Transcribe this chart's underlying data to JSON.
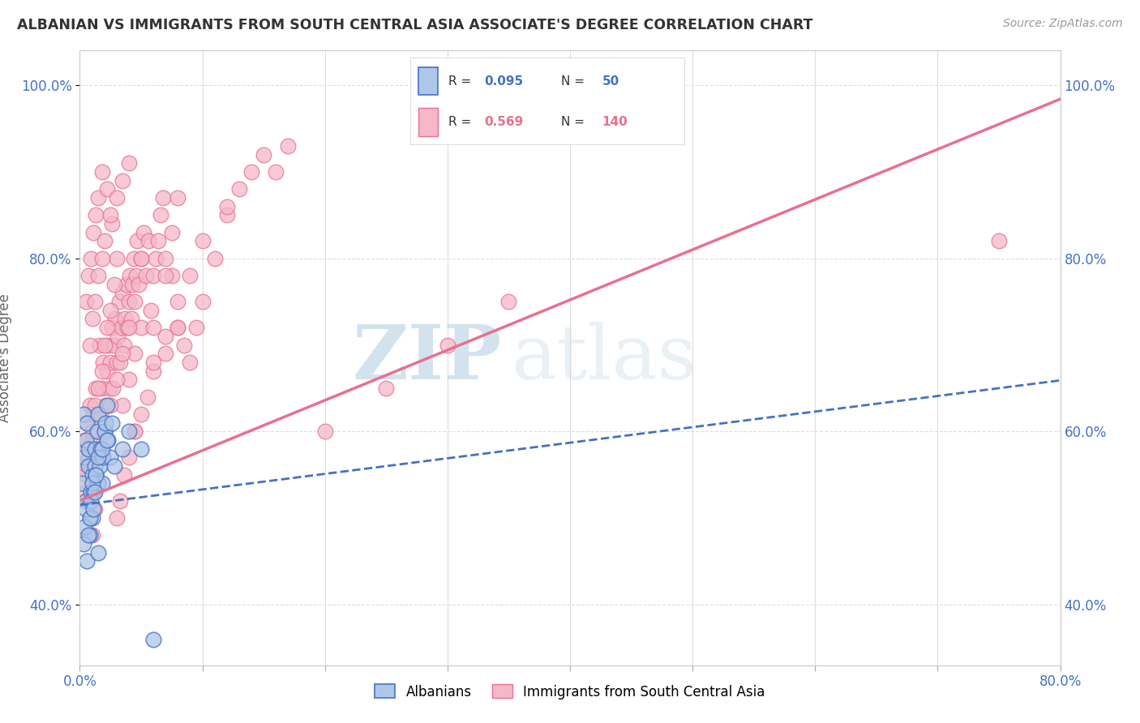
{
  "title": "ALBANIAN VS IMMIGRANTS FROM SOUTH CENTRAL ASIA ASSOCIATE'S DEGREE CORRELATION CHART",
  "source_text": "Source: ZipAtlas.com",
  "ylabel": "Associate's Degree",
  "xlim": [
    0.0,
    0.8
  ],
  "ylim": [
    0.33,
    1.04
  ],
  "yticks": [
    0.4,
    0.6,
    0.8,
    1.0
  ],
  "ytick_labels": [
    "40.0%",
    "60.0%",
    "80.0%",
    "100.0%"
  ],
  "xticks": [
    0.0,
    0.1,
    0.2,
    0.3,
    0.4,
    0.5,
    0.6,
    0.7,
    0.8
  ],
  "series1_color": "#aec6e8",
  "series2_color": "#f4b8c8",
  "line1_color": "#4472c4",
  "line2_color": "#e87090",
  "R1": 0.095,
  "N1": 50,
  "R2": 0.569,
  "N2": 140,
  "legend1_label": "Albanians",
  "legend2_label": "Immigrants from South Central Asia",
  "watermark_zip": "ZIP",
  "watermark_atlas": "atlas",
  "background_color": "#ffffff",
  "grid_color": "#dddddd",
  "line1_slope": 0.18,
  "line1_intercept": 0.515,
  "line2_slope": 0.58,
  "line2_intercept": 0.52,
  "albanians_x": [
    0.002,
    0.003,
    0.004,
    0.005,
    0.005,
    0.006,
    0.007,
    0.007,
    0.008,
    0.008,
    0.009,
    0.01,
    0.01,
    0.011,
    0.012,
    0.012,
    0.013,
    0.014,
    0.015,
    0.015,
    0.016,
    0.017,
    0.018,
    0.019,
    0.02,
    0.021,
    0.022,
    0.023,
    0.025,
    0.026,
    0.003,
    0.004,
    0.005,
    0.006,
    0.007,
    0.008,
    0.009,
    0.01,
    0.011,
    0.012,
    0.013,
    0.015,
    0.018,
    0.022,
    0.028,
    0.035,
    0.04,
    0.05,
    0.06,
    0.015
  ],
  "albanians_y": [
    0.54,
    0.62,
    0.57,
    0.59,
    0.52,
    0.61,
    0.56,
    0.58,
    0.48,
    0.5,
    0.53,
    0.55,
    0.5,
    0.53,
    0.56,
    0.58,
    0.55,
    0.6,
    0.62,
    0.54,
    0.56,
    0.58,
    0.54,
    0.57,
    0.6,
    0.61,
    0.63,
    0.59,
    0.57,
    0.61,
    0.47,
    0.49,
    0.51,
    0.45,
    0.48,
    0.5,
    0.52,
    0.54,
    0.51,
    0.53,
    0.55,
    0.57,
    0.58,
    0.59,
    0.56,
    0.58,
    0.6,
    0.58,
    0.36,
    0.46
  ],
  "immigrants_x": [
    0.002,
    0.004,
    0.005,
    0.006,
    0.007,
    0.008,
    0.009,
    0.01,
    0.011,
    0.012,
    0.013,
    0.014,
    0.015,
    0.016,
    0.017,
    0.018,
    0.019,
    0.02,
    0.021,
    0.022,
    0.023,
    0.024,
    0.025,
    0.026,
    0.027,
    0.028,
    0.029,
    0.03,
    0.031,
    0.032,
    0.033,
    0.034,
    0.035,
    0.036,
    0.037,
    0.038,
    0.039,
    0.04,
    0.041,
    0.042,
    0.043,
    0.044,
    0.045,
    0.046,
    0.047,
    0.048,
    0.05,
    0.052,
    0.054,
    0.056,
    0.058,
    0.06,
    0.062,
    0.064,
    0.066,
    0.068,
    0.07,
    0.075,
    0.08,
    0.085,
    0.09,
    0.095,
    0.1,
    0.11,
    0.12,
    0.13,
    0.14,
    0.15,
    0.16,
    0.17,
    0.005,
    0.008,
    0.01,
    0.012,
    0.015,
    0.018,
    0.02,
    0.022,
    0.025,
    0.028,
    0.03,
    0.033,
    0.036,
    0.04,
    0.045,
    0.05,
    0.055,
    0.06,
    0.07,
    0.08,
    0.005,
    0.007,
    0.009,
    0.011,
    0.013,
    0.015,
    0.018,
    0.022,
    0.026,
    0.03,
    0.035,
    0.04,
    0.045,
    0.05,
    0.06,
    0.07,
    0.08,
    0.09,
    0.1,
    0.12,
    0.01,
    0.012,
    0.015,
    0.018,
    0.02,
    0.025,
    0.03,
    0.035,
    0.04,
    0.045,
    0.008,
    0.01,
    0.012,
    0.015,
    0.018,
    0.02,
    0.025,
    0.03,
    0.035,
    0.04,
    0.2,
    0.25,
    0.3,
    0.35,
    0.05,
    0.06,
    0.07,
    0.075,
    0.08,
    0.75
  ],
  "immigrants_y": [
    0.56,
    0.59,
    0.53,
    0.61,
    0.57,
    0.63,
    0.56,
    0.59,
    0.62,
    0.55,
    0.65,
    0.6,
    0.58,
    0.7,
    0.62,
    0.65,
    0.68,
    0.6,
    0.63,
    0.67,
    0.7,
    0.65,
    0.68,
    0.72,
    0.65,
    0.7,
    0.73,
    0.68,
    0.71,
    0.75,
    0.68,
    0.72,
    0.76,
    0.7,
    0.73,
    0.77,
    0.72,
    0.75,
    0.78,
    0.73,
    0.77,
    0.8,
    0.75,
    0.78,
    0.82,
    0.77,
    0.8,
    0.83,
    0.78,
    0.82,
    0.74,
    0.78,
    0.8,
    0.82,
    0.85,
    0.87,
    0.8,
    0.78,
    0.72,
    0.7,
    0.68,
    0.72,
    0.75,
    0.8,
    0.85,
    0.88,
    0.9,
    0.92,
    0.9,
    0.93,
    0.55,
    0.58,
    0.6,
    0.63,
    0.65,
    0.67,
    0.7,
    0.72,
    0.74,
    0.77,
    0.5,
    0.52,
    0.55,
    0.57,
    0.6,
    0.62,
    0.64,
    0.67,
    0.69,
    0.72,
    0.75,
    0.78,
    0.8,
    0.83,
    0.85,
    0.87,
    0.9,
    0.88,
    0.84,
    0.8,
    0.63,
    0.66,
    0.69,
    0.72,
    0.68,
    0.71,
    0.75,
    0.78,
    0.82,
    0.86,
    0.48,
    0.51,
    0.54,
    0.57,
    0.6,
    0.63,
    0.66,
    0.69,
    0.72,
    0.6,
    0.7,
    0.73,
    0.75,
    0.78,
    0.8,
    0.82,
    0.85,
    0.87,
    0.89,
    0.91,
    0.6,
    0.65,
    0.7,
    0.75,
    0.8,
    0.72,
    0.78,
    0.83,
    0.87,
    0.82
  ]
}
